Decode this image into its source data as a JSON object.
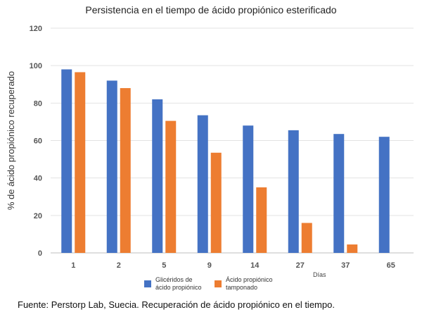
{
  "chart_data": {
    "type": "bar",
    "title": "Persistencia en el tiempo de ácido propiónico esterificado",
    "xlabel": "Días",
    "ylabel": "% de ácido propiónico recuperado",
    "ylim": [
      0,
      120
    ],
    "yticks": [
      0,
      20,
      40,
      60,
      80,
      100,
      120
    ],
    "grid": true,
    "categories": [
      "1",
      "2",
      "5",
      "9",
      "14",
      "27",
      "37",
      "65"
    ],
    "series": [
      {
        "name": "Glicéridos de ácido propiónico",
        "legend_lines": [
          "Glicéridos de",
          "ácido propiónico"
        ],
        "color": "#4472C4",
        "values": [
          98,
          92,
          82,
          73.5,
          68,
          65.5,
          63.5,
          62
        ]
      },
      {
        "name": "Ácido propiónico tamponado",
        "legend_lines": [
          "Ácido propiónico",
          "tamponado"
        ],
        "color": "#ED7D31",
        "values": [
          96.5,
          88,
          70.5,
          53.5,
          35,
          16,
          4.5,
          null
        ]
      }
    ],
    "legend_position": "bottom-left"
  },
  "footer": {
    "source": "Fuente: Perstorp Lab, Suecia. Recuperación de ácido propiónico en el tiempo."
  }
}
